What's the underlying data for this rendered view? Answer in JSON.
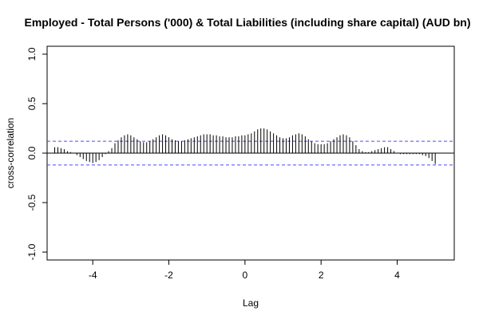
{
  "chart_data": {
    "type": "bar",
    "title": "Employed - Total Persons ('000) & Total Liabilities (including share capital) (AUD bn)",
    "xlabel": "Lag",
    "ylabel": "cross-correlation",
    "xlim": [
      -5.2,
      5.5
    ],
    "ylim": [
      -1.08,
      1.08
    ],
    "xticks": [
      -4,
      -2,
      0,
      2,
      4
    ],
    "xtick_labels": [
      "-4",
      "-2",
      "0",
      "2",
      "4"
    ],
    "yticks": [
      -1.0,
      -0.5,
      0.0,
      0.5,
      1.0
    ],
    "ytick_labels": [
      "-1.0",
      "-0.5",
      "0.0",
      "0.5",
      "1.0"
    ],
    "confidence_band": [
      0.12,
      -0.12
    ],
    "lag_range": [
      -5,
      5
    ],
    "lag_step": 0.0833,
    "values": [
      0.06,
      0.06,
      0.05,
      0.04,
      0.02,
      0.01,
      0.0,
      -0.02,
      -0.04,
      -0.06,
      -0.08,
      -0.09,
      -0.1,
      -0.09,
      -0.07,
      -0.04,
      -0.01,
      0.02,
      0.05,
      0.1,
      0.13,
      0.16,
      0.18,
      0.19,
      0.18,
      0.16,
      0.14,
      0.12,
      0.11,
      0.11,
      0.12,
      0.14,
      0.16,
      0.18,
      0.19,
      0.18,
      0.16,
      0.14,
      0.13,
      0.12,
      0.12,
      0.13,
      0.14,
      0.15,
      0.16,
      0.17,
      0.18,
      0.19,
      0.19,
      0.19,
      0.18,
      0.18,
      0.17,
      0.17,
      0.16,
      0.16,
      0.16,
      0.17,
      0.17,
      0.18,
      0.18,
      0.19,
      0.2,
      0.22,
      0.24,
      0.25,
      0.25,
      0.24,
      0.22,
      0.2,
      0.18,
      0.16,
      0.15,
      0.15,
      0.16,
      0.18,
      0.19,
      0.2,
      0.19,
      0.17,
      0.14,
      0.12,
      0.1,
      0.09,
      0.09,
      0.09,
      0.1,
      0.12,
      0.14,
      0.16,
      0.18,
      0.19,
      0.18,
      0.16,
      0.12,
      0.08,
      0.04,
      0.02,
      0.01,
      0.01,
      0.02,
      0.03,
      0.04,
      0.05,
      0.06,
      0.06,
      0.04,
      0.02,
      0.0,
      -0.01,
      -0.01,
      -0.01,
      -0.01,
      -0.01,
      -0.01,
      -0.01,
      -0.02,
      -0.03,
      -0.05,
      -0.08,
      -0.11
    ],
    "bar_color": "#000000",
    "band_color": "#4a4aff",
    "grid": false,
    "legend": "none"
  }
}
